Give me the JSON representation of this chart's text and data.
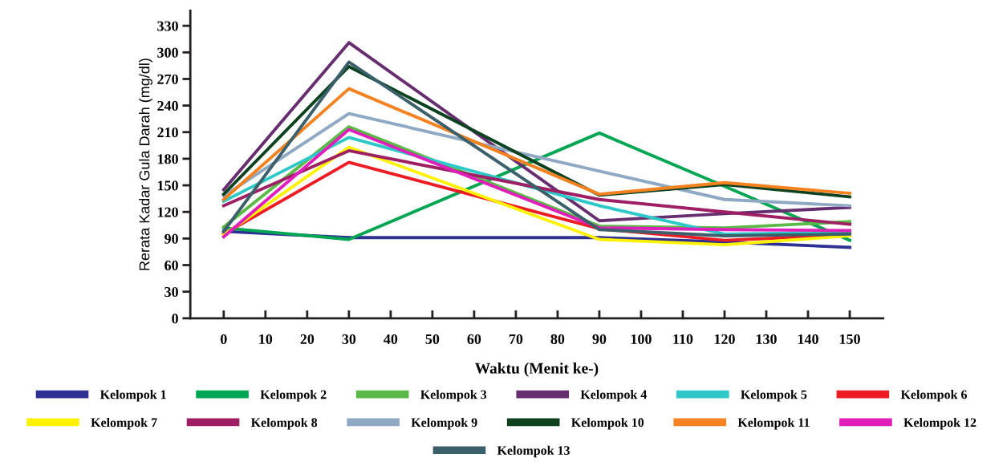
{
  "chart_data": {
    "type": "line",
    "xlabel": "Waktu (Menit ke-)",
    "ylabel": "Rerata Kadar Gula Darah (mg/dl)",
    "x": [
      0,
      30,
      90,
      120,
      150
    ],
    "xlim": [
      -8,
      158
    ],
    "xticks": [
      0,
      10,
      20,
      30,
      40,
      50,
      60,
      70,
      80,
      90,
      100,
      110,
      120,
      130,
      140,
      150
    ],
    "ylim": [
      0,
      347
    ],
    "yticks": [
      0,
      30,
      60,
      90,
      120,
      150,
      180,
      210,
      240,
      270,
      300,
      330
    ],
    "grid": false,
    "legend": "bottom",
    "marker": "none",
    "line_style": "solid",
    "series": [
      {
        "name": "Kelompok 1",
        "color": "#2e3192",
        "values": [
          98,
          91,
          91,
          86,
          80
        ]
      },
      {
        "name": "Kelompok 2",
        "color": "#00a651",
        "values": [
          102,
          89,
          209,
          149,
          88
        ]
      },
      {
        "name": "Kelompok 3",
        "color": "#5bb947",
        "values": [
          103,
          216,
          104,
          102,
          109
        ]
      },
      {
        "name": "Kelompok 4",
        "color": "#662d6f",
        "values": [
          145,
          311,
          110,
          118,
          125
        ]
      },
      {
        "name": "Kelompok 5",
        "color": "#2ec8c8",
        "values": [
          132,
          204,
          127,
          95,
          97
        ]
      },
      {
        "name": "Kelompok 6",
        "color": "#ed1c24",
        "values": [
          95,
          176,
          101,
          88,
          94
        ]
      },
      {
        "name": "Kelompok 7",
        "color": "#fff200",
        "values": [
          94,
          193,
          89,
          83,
          93
        ]
      },
      {
        "name": "Kelompok 8",
        "color": "#9e1f63",
        "values": [
          127,
          189,
          134,
          120,
          106
        ]
      },
      {
        "name": "Kelompok 9",
        "color": "#8fa8c4",
        "values": [
          138,
          231,
          166,
          134,
          127
        ]
      },
      {
        "name": "Kelompok 10",
        "color": "#0d4221",
        "values": [
          140,
          284,
          139,
          151,
          137
        ]
      },
      {
        "name": "Kelompok 11",
        "color": "#f58220",
        "values": [
          134,
          259,
          140,
          153,
          141
        ]
      },
      {
        "name": "Kelompok 12",
        "color": "#e01fba",
        "values": [
          92,
          213,
          102,
          100,
          99
        ]
      },
      {
        "name": "Kelompok 13",
        "color": "#3b5f6b",
        "values": [
          98,
          289,
          100,
          93,
          95
        ]
      }
    ]
  }
}
